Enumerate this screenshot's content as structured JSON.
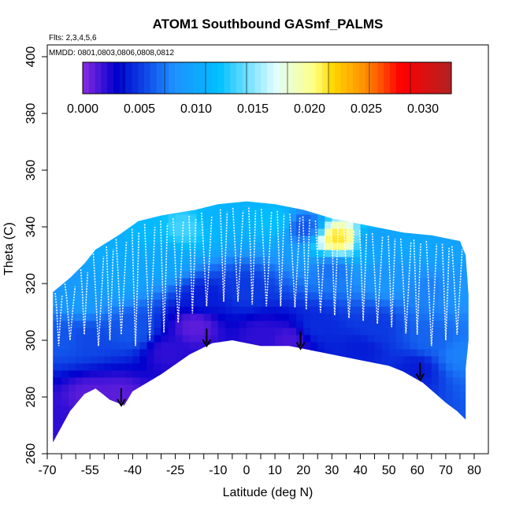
{
  "chart_data": {
    "type": "heatmap",
    "title": "ATOM1 Southbound GASmf_PALMS",
    "annotations": {
      "flights": "Flts: 2,3,4,5,6",
      "dates": "MMDD: 0801,0803,0806,0808,0812"
    },
    "xlabel": "Latitude (deg N)",
    "ylabel": "Theta (C)",
    "xlim": [
      -70,
      80
    ],
    "ylim": [
      260,
      400
    ],
    "x_ticks": [
      -70,
      -55,
      -40,
      -25,
      -10,
      0,
      10,
      20,
      30,
      40,
      50,
      60,
      70,
      80
    ],
    "x_tick_labels": [
      "-70",
      "-55",
      "-40",
      "-25",
      "-10",
      "0",
      "10",
      "20",
      "30",
      "40",
      "50",
      "60",
      "70",
      "80"
    ],
    "x_minor_ticks": [
      -65,
      -60,
      -50,
      -45,
      -35,
      -30,
      -20,
      -15,
      -5,
      5,
      15,
      25,
      35,
      45,
      55,
      65,
      75
    ],
    "y_ticks": [
      260,
      280,
      300,
      320,
      340,
      360,
      380,
      400
    ],
    "y_tick_labels": [
      "260",
      "280",
      "300",
      "320",
      "340",
      "360",
      "380",
      "400"
    ],
    "colorbar": {
      "range": [
        0,
        0.0325
      ],
      "ticks": [
        0,
        0.005,
        0.01,
        0.015,
        0.02,
        0.025,
        0.03
      ],
      "tick_labels": [
        "0.000",
        "0.005",
        "0.010",
        "0.015",
        "0.020",
        "0.025",
        "0.030"
      ],
      "colors": [
        "#8a2be2",
        "#0000cd",
        "#1e90ff",
        "#00bfff",
        "#e0ffff",
        "#ffff80",
        "#ffd700",
        "#ff8c00",
        "#ff0000",
        "#b22222"
      ],
      "stops": [
        0,
        0.003,
        0.008,
        0.012,
        0.017,
        0.0205,
        0.022,
        0.025,
        0.028,
        0.0325
      ]
    },
    "lower_boundary": [
      [
        -68,
        264
      ],
      [
        -62,
        275
      ],
      [
        -57,
        281
      ],
      [
        -53,
        283
      ],
      [
        -48,
        279
      ],
      [
        -43,
        277
      ],
      [
        -40,
        282
      ],
      [
        -30,
        288
      ],
      [
        -20,
        295
      ],
      [
        -12,
        299
      ],
      [
        -5,
        300
      ],
      [
        5,
        298
      ],
      [
        15,
        298
      ],
      [
        20,
        297
      ],
      [
        30,
        295
      ],
      [
        40,
        293
      ],
      [
        50,
        291
      ],
      [
        55,
        289
      ],
      [
        62,
        285
      ],
      [
        70,
        278
      ],
      [
        74,
        275
      ],
      [
        77,
        272
      ]
    ],
    "upper_boundary": [
      [
        -68,
        317
      ],
      [
        -62,
        322
      ],
      [
        -57,
        327
      ],
      [
        -53,
        332
      ],
      [
        -45,
        337
      ],
      [
        -38,
        342
      ],
      [
        -30,
        344
      ],
      [
        -18,
        346
      ],
      [
        -10,
        348
      ],
      [
        0,
        349
      ],
      [
        10,
        348
      ],
      [
        20,
        346
      ],
      [
        30,
        343
      ],
      [
        45,
        340
      ],
      [
        55,
        338
      ],
      [
        65,
        337
      ],
      [
        70,
        336
      ],
      [
        75,
        335
      ],
      [
        77,
        330
      ],
      [
        78,
        316
      ],
      [
        78,
        300
      ],
      [
        77,
        290
      ]
    ],
    "arrows": [
      {
        "lat": -44,
        "theta": 277
      },
      {
        "lat": -14,
        "theta": 298
      },
      {
        "lat": 19,
        "theta": 297
      },
      {
        "lat": 61,
        "theta": 286
      }
    ],
    "field_anchors": [
      {
        "lat": -65,
        "theta": 272,
        "value": 0.002
      },
      {
        "lat": -55,
        "theta": 280,
        "value": 0.001
      },
      {
        "lat": -45,
        "theta": 280,
        "value": 0.001
      },
      {
        "lat": -28,
        "theta": 296,
        "value": 0.002
      },
      {
        "lat": -18,
        "theta": 305,
        "value": 0.001
      },
      {
        "lat": 5,
        "theta": 302,
        "value": 0.002
      },
      {
        "lat": 15,
        "theta": 300,
        "value": 0.0015
      },
      {
        "lat": 40,
        "theta": 297,
        "value": 0.004
      },
      {
        "lat": 60,
        "theta": 290,
        "value": 0.004
      },
      {
        "lat": -65,
        "theta": 300,
        "value": 0.006
      },
      {
        "lat": -55,
        "theta": 300,
        "value": 0.0055
      },
      {
        "lat": -40,
        "theta": 303,
        "value": 0.006
      },
      {
        "lat": 25,
        "theta": 305,
        "value": 0.0045
      },
      {
        "lat": 45,
        "theta": 305,
        "value": 0.005
      },
      {
        "lat": 65,
        "theta": 300,
        "value": 0.0065
      },
      {
        "lat": 75,
        "theta": 295,
        "value": 0.0075
      },
      {
        "lat": -15,
        "theta": 315,
        "value": 0.004
      },
      {
        "lat": 0,
        "theta": 318,
        "value": 0.005
      },
      {
        "lat": -58,
        "theta": 315,
        "value": 0.009
      },
      {
        "lat": -45,
        "theta": 322,
        "value": 0.01
      },
      {
        "lat": -30,
        "theta": 328,
        "value": 0.01
      },
      {
        "lat": 30,
        "theta": 325,
        "value": 0.007
      },
      {
        "lat": 50,
        "theta": 322,
        "value": 0.0085
      },
      {
        "lat": 65,
        "theta": 318,
        "value": 0.0075
      },
      {
        "lat": 75,
        "theta": 318,
        "value": 0.0085
      },
      {
        "lat": -50,
        "theta": 335,
        "value": 0.0105
      },
      {
        "lat": -35,
        "theta": 340,
        "value": 0.0115
      },
      {
        "lat": -22,
        "theta": 340,
        "value": 0.0135
      },
      {
        "lat": -10,
        "theta": 343,
        "value": 0.011
      },
      {
        "lat": 10,
        "theta": 342,
        "value": 0.012
      },
      {
        "lat": 20,
        "theta": 340,
        "value": 0.006
      },
      {
        "lat": 32,
        "theta": 336,
        "value": 0.0215
      },
      {
        "lat": 45,
        "theta": 335,
        "value": 0.0095
      },
      {
        "lat": 60,
        "theta": 334,
        "value": 0.01
      },
      {
        "lat": 72,
        "theta": 332,
        "value": 0.0095
      }
    ]
  }
}
